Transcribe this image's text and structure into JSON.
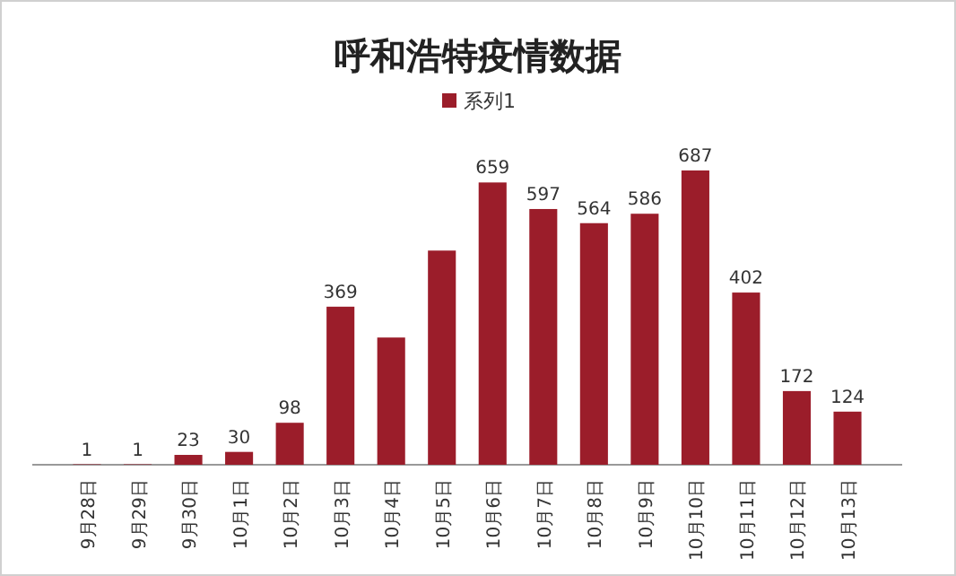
{
  "chart_data": {
    "type": "bar",
    "title": "呼和浩特疫情数据",
    "legend": "top",
    "categories": [
      "9月28日",
      "9月29日",
      "9月30日",
      "10月1日",
      "10月2日",
      "10月3日",
      "10月4日",
      "10月5日",
      "10月6日",
      "10月7日",
      "10月8日",
      "10月9日",
      "10月10日",
      "10月11日",
      "10月12日",
      "10月13日"
    ],
    "series": [
      {
        "name": "系列1",
        "color": "#9b1d2a",
        "values": [
          1,
          1,
          23,
          30,
          98,
          369,
          297,
          500,
          659,
          597,
          564,
          586,
          687,
          402,
          172,
          124
        ],
        "value_labels": [
          "1",
          "1",
          "23",
          "30",
          "98",
          "369",
          null,
          null,
          "659",
          "597",
          "564",
          "586",
          "687",
          "402",
          "172",
          "124"
        ]
      }
    ]
  }
}
